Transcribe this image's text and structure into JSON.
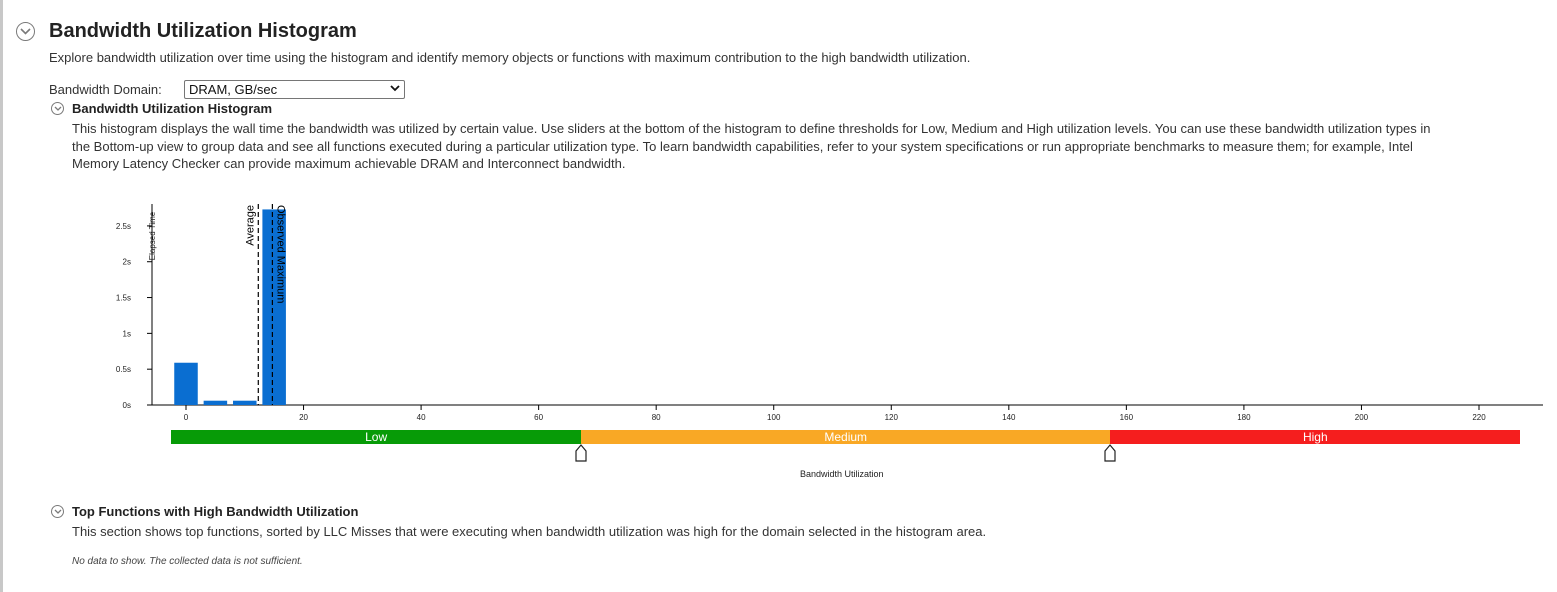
{
  "header": {
    "title": "Bandwidth Utilization Histogram",
    "description": "Explore bandwidth utilization over time using the histogram and identify memory objects or functions with maximum contribution to the high bandwidth utilization."
  },
  "domain": {
    "label": "Bandwidth Domain:",
    "selected": "DRAM, GB/sec"
  },
  "histogram_section": {
    "title": "Bandwidth Utilization Histogram",
    "lines": [
      "This histogram displays the wall time the bandwidth was utilized by certain value. Use sliders at the bottom of the histogram to define thresholds for Low, Medium and High utilization levels. You can use these bandwidth utilization types in",
      "the Bottom-up view to group data and see all functions executed during a particular utilization type. To learn bandwidth capabilities, refer to your system specifications or run appropriate benchmarks to measure them; for example, Intel",
      "Memory Latency Checker can provide maximum achievable DRAM and Interconnect bandwidth."
    ]
  },
  "chart_data": {
    "type": "bar",
    "ylabel": "Elapsed Time",
    "xlabel": "Bandwidth Utilization",
    "x_ticks": [
      "0",
      "20",
      "40",
      "60",
      "80",
      "100",
      "120",
      "140",
      "160",
      "180",
      "200",
      "220"
    ],
    "y_ticks": [
      "0s",
      "0.5s",
      "1s",
      "1.5s",
      "2s",
      "2.5s"
    ],
    "ylim": [
      0,
      2.75
    ],
    "xlim": [
      -3,
      227
    ],
    "bars": [
      {
        "x0": -2,
        "x1": 2,
        "value": 0.59
      },
      {
        "x0": 3,
        "x1": 7,
        "value": 0.06
      },
      {
        "x0": 8,
        "x1": 12,
        "value": 0.06
      },
      {
        "x0": 13,
        "x1": 17,
        "value": 2.73
      }
    ],
    "markers": [
      {
        "label": "Average",
        "x": 12.3
      },
      {
        "label": "Observed Maximum",
        "x": 14.7
      }
    ],
    "ranges": [
      {
        "label": "Low",
        "from": -2.5,
        "to": 67.2,
        "color": "#079b07"
      },
      {
        "label": "Medium",
        "from": 67.2,
        "to": 157.3,
        "color": "#f9a825"
      },
      {
        "label": "High",
        "from": 157.3,
        "to": 227,
        "color": "#f51e1e"
      }
    ],
    "bar_color": "#0a6ed1"
  },
  "top_functions": {
    "title": "Top Functions with High Bandwidth Utilization",
    "description": "This section shows top functions, sorted by LLC Misses that were executing when bandwidth utilization was high for the domain selected in the histogram area.",
    "no_data": "No data to show. The collected data is not sufficient."
  }
}
